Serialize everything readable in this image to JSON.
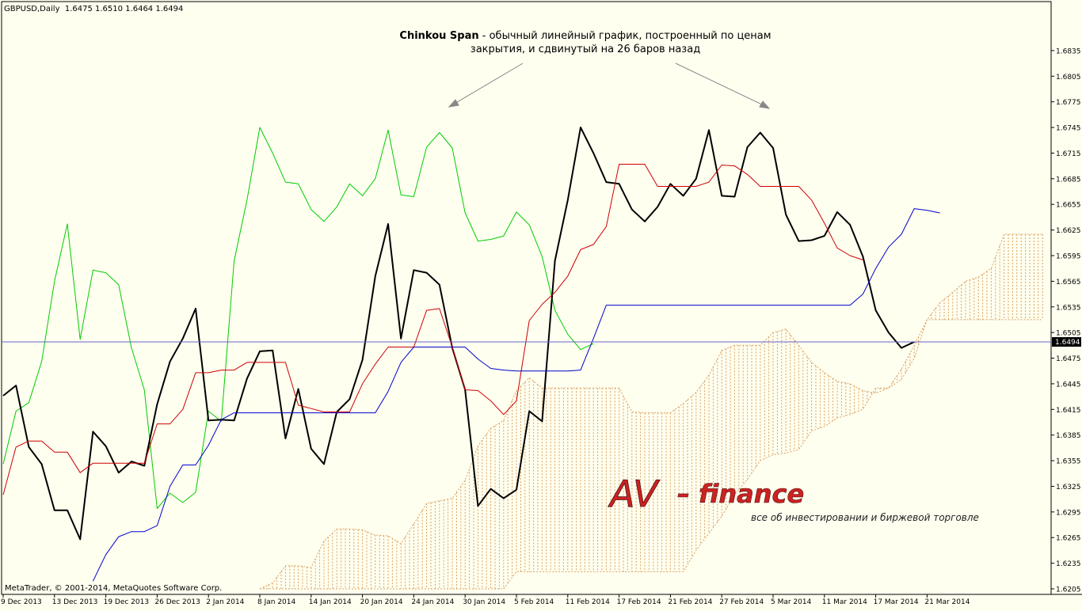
{
  "symbol_header": "GBPUSD,Daily  1.6475 1.6510 1.6464 1.6494",
  "annotation": {
    "bold": "Chinkou Span",
    "rest": " - обычный линейный график, построенный по ценам",
    "line2": "закрытия, и сдвинутый на 26 баров назад"
  },
  "copyright": "MetaTrader, © 2001-2014, MetaQuotes Software Corp.",
  "logo": {
    "brand": "AV",
    "suffix": "– finance",
    "tagline": "все об инвестировании и биржевой торговле"
  },
  "price_label": "1.6494",
  "colors": {
    "background": "#fffff0",
    "tenkan": "#cc0000",
    "kijun": "#0000cc",
    "chinkou": "#00cc00",
    "price": "#000000",
    "cloud": "#d9a060",
    "price_line": "#6666cc"
  },
  "chart_data": {
    "type": "line",
    "title": "",
    "xlabel": "",
    "ylabel": "",
    "ylim": [
      1.6205,
      1.6865
    ],
    "xlim": [
      0,
      79
    ],
    "grid": false,
    "y_ticks": [
      "1.6835",
      "1.6805",
      "1.6775",
      "1.6745",
      "1.6715",
      "1.6685",
      "1.6655",
      "1.6625",
      "1.6595",
      "1.6565",
      "1.6535",
      "1.6505",
      "1.6475",
      "1.6445",
      "1.6415",
      "1.6385",
      "1.6355",
      "1.6325",
      "1.6295",
      "1.6265",
      "1.6235",
      "1.6205"
    ],
    "x_ticks": [
      {
        "bar": 0,
        "label": "9 Dec 2013"
      },
      {
        "bar": 4,
        "label": "13 Dec 2013"
      },
      {
        "bar": 8,
        "label": "19 Dec 2013"
      },
      {
        "bar": 12,
        "label": "26 Dec 2013"
      },
      {
        "bar": 16,
        "label": "2 Jan 2014"
      },
      {
        "bar": 20,
        "label": "8 Jan 2014"
      },
      {
        "bar": 24,
        "label": "14 Jan 2014"
      },
      {
        "bar": 28,
        "label": "20 Jan 2014"
      },
      {
        "bar": 32,
        "label": "24 Jan 2014"
      },
      {
        "bar": 36,
        "label": "30 Jan 2014"
      },
      {
        "bar": 40,
        "label": "5 Feb 2014"
      },
      {
        "bar": 44,
        "label": "11 Feb 2014"
      },
      {
        "bar": 48,
        "label": "17 Feb 2014"
      },
      {
        "bar": 52,
        "label": "21 Feb 2014"
      },
      {
        "bar": 56,
        "label": "27 Feb 2014"
      },
      {
        "bar": 60,
        "label": "5 Mar 2014"
      },
      {
        "bar": 64,
        "label": "11 Mar 2014"
      },
      {
        "bar": 68,
        "label": "17 Mar 2014"
      },
      {
        "bar": 72,
        "label": "21 Mar 2014"
      }
    ],
    "current_price": 1.6494,
    "series": [
      {
        "key": "chinkou",
        "width": 1,
        "x0": 0,
        "values": [
          1.6351,
          1.6413,
          1.6423,
          1.6471,
          1.6565,
          1.6632,
          1.6497,
          1.6578,
          1.6575,
          1.6561,
          1.6487,
          1.6438,
          1.6299,
          1.6317,
          1.6306,
          1.6318,
          1.6413,
          1.6401,
          1.6589,
          1.666,
          1.6745,
          1.6715,
          1.6681,
          1.6679,
          1.6649,
          1.6635,
          1.6652,
          1.6679,
          1.6665,
          1.6685,
          1.6742,
          1.6666,
          1.6664,
          1.6722,
          1.6739,
          1.6721,
          1.6645,
          1.6612,
          1.6614,
          1.6618,
          1.6646,
          1.6631,
          1.6594,
          1.6531,
          1.6503,
          1.6485,
          1.6492
        ]
      },
      {
        "key": "price",
        "width": 2,
        "x0": 0,
        "values": [
          1.6431,
          1.6443,
          1.6371,
          1.6351,
          1.6297,
          1.6297,
          1.6263,
          1.6389,
          1.6372,
          1.6341,
          1.6354,
          1.6349,
          1.6421,
          1.6471,
          1.6498,
          1.6533,
          1.6402,
          1.6403,
          1.6402,
          1.6451,
          1.6483,
          1.6484,
          1.6381,
          1.6439,
          1.6369,
          1.6351,
          1.6412,
          1.6427,
          1.6473,
          1.6571,
          1.6632,
          1.6498,
          1.6578,
          1.6575,
          1.6561,
          1.6487,
          1.6438,
          1.6302,
          1.6322,
          1.6311,
          1.6321,
          1.6413,
          1.6401,
          1.6589,
          1.666,
          1.6745,
          1.6715,
          1.6681,
          1.6679,
          1.6649,
          1.6635,
          1.6652,
          1.6679,
          1.6665,
          1.6685,
          1.6742,
          1.6665,
          1.6664,
          1.6722,
          1.6739,
          1.6721,
          1.6643,
          1.6612,
          1.6613,
          1.6618,
          1.6646,
          1.6631,
          1.6594,
          1.6531,
          1.6505,
          1.6487,
          1.6494
        ]
      },
      {
        "key": "tenkan",
        "width": 1,
        "x0": 0,
        "values": [
          1.6315,
          1.6371,
          1.6378,
          1.6378,
          1.6365,
          1.6365,
          1.6341,
          1.6352,
          1.6352,
          1.6352,
          1.6352,
          1.6352,
          1.6398,
          1.6398,
          1.6415,
          1.6458,
          1.6458,
          1.6461,
          1.6461,
          1.647,
          1.647,
          1.647,
          1.647,
          1.642,
          1.6416,
          1.6412,
          1.6412,
          1.6412,
          1.6445,
          1.6468,
          1.6488,
          1.6488,
          1.6488,
          1.6531,
          1.6533,
          1.6488,
          1.6438,
          1.6437,
          1.6425,
          1.6409,
          1.6425,
          1.6519,
          1.6538,
          1.6552,
          1.6571,
          1.6602,
          1.6608,
          1.6629,
          1.6702,
          1.6702,
          1.6702,
          1.6676,
          1.6676,
          1.6676,
          1.6676,
          1.6681,
          1.6701,
          1.67,
          1.669,
          1.6676,
          1.6676,
          1.6676,
          1.6676,
          1.666,
          1.6633,
          1.6604,
          1.6595,
          1.659
        ]
      },
      {
        "key": "kijun",
        "width": 1,
        "x0": 7,
        "values": [
          1.6214,
          1.6245,
          1.6266,
          1.6272,
          1.6272,
          1.6279,
          1.6325,
          1.635,
          1.635,
          1.6373,
          1.6403,
          1.6411,
          1.6411,
          1.6411,
          1.6411,
          1.6411,
          1.6411,
          1.6411,
          1.6411,
          1.6411,
          1.6411,
          1.6411,
          1.6411,
          1.6436,
          1.647,
          1.6488,
          1.6488,
          1.6488,
          1.6488,
          1.6488,
          1.6474,
          1.6463,
          1.6461,
          1.646,
          1.646,
          1.646,
          1.646,
          1.646,
          1.6461,
          1.6498,
          1.6537,
          1.6537,
          1.6537,
          1.6537,
          1.6537,
          1.6537,
          1.6537,
          1.6537,
          1.6537,
          1.6537,
          1.6537,
          1.6537,
          1.6537,
          1.6537,
          1.6537,
          1.6537,
          1.6537,
          1.6537,
          1.6537,
          1.6537,
          1.655,
          1.658,
          1.6605,
          1.662,
          1.665,
          1.6648,
          1.6645
        ]
      }
    ],
    "cloud": {
      "x0": 20,
      "span_a": [
        1.6205,
        1.6212,
        1.6232,
        1.6232,
        1.623,
        1.6261,
        1.6275,
        1.6275,
        1.6274,
        1.6268,
        1.6267,
        1.6258,
        1.6281,
        1.6305,
        1.6308,
        1.6311,
        1.6332,
        1.6372,
        1.6393,
        1.6402,
        1.6437,
        1.6452,
        1.644,
        1.644,
        1.644,
        1.644,
        1.644,
        1.644,
        1.644,
        1.6412,
        1.6411,
        1.6411,
        1.6411,
        1.6422,
        1.6435,
        1.6455,
        1.6484,
        1.649,
        1.649,
        1.649,
        1.6505,
        1.6509,
        1.649,
        1.647,
        1.6458,
        1.6448,
        1.6445,
        1.6437,
        1.6434,
        1.644,
        1.645,
        1.6475,
        1.652,
        1.654,
        1.6552,
        1.6565,
        1.657,
        1.658,
        1.662,
        1.662,
        1.662,
        1.662
      ],
      "span_b": [
        1.6205,
        1.6205,
        1.6205,
        1.6205,
        1.6205,
        1.6205,
        1.6205,
        1.6205,
        1.6205,
        1.6205,
        1.6205,
        1.6205,
        1.6205,
        1.6205,
        1.6205,
        1.6205,
        1.6205,
        1.6205,
        1.6205,
        1.6205,
        1.6225,
        1.6225,
        1.6225,
        1.6225,
        1.6225,
        1.6225,
        1.6225,
        1.6225,
        1.6225,
        1.6225,
        1.6225,
        1.6225,
        1.6225,
        1.6225,
        1.625,
        1.627,
        1.629,
        1.6315,
        1.6333,
        1.6355,
        1.6362,
        1.6364,
        1.6368,
        1.639,
        1.6395,
        1.6405,
        1.6409,
        1.6415,
        1.644,
        1.644,
        1.6462,
        1.649,
        1.652,
        1.652,
        1.652,
        1.652,
        1.652,
        1.652,
        1.652,
        1.652,
        1.652,
        1.652
      ]
    }
  }
}
